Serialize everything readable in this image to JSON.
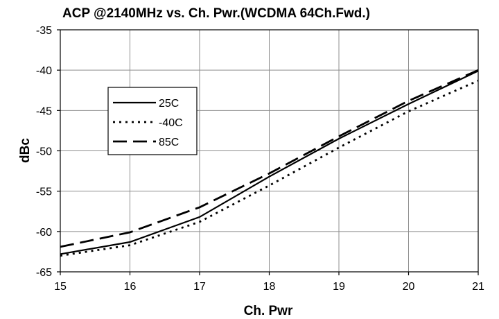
{
  "chart_data": {
    "type": "line",
    "title": "ACP @2140MHz vs. Ch. Pwr.(WCDMA 64Ch.Fwd.)",
    "xlabel": "Ch. Pwr",
    "ylabel": "dBc",
    "xlim": [
      15,
      21
    ],
    "ylim": [
      -65,
      -35
    ],
    "xticks": [
      "15",
      "16",
      "17",
      "18",
      "19",
      "20",
      "21"
    ],
    "yticks": [
      "-65",
      "-60",
      "-55",
      "-50",
      "-45",
      "-40",
      "-35"
    ],
    "grid": true,
    "legend_position": "upper-left inside plot",
    "x": [
      15,
      16,
      17,
      18,
      19,
      20,
      21
    ],
    "series": [
      {
        "name": "25C",
        "values": [
          -62.8,
          -61.3,
          -58.2,
          -53.2,
          -48.5,
          -44.2,
          -40.1
        ],
        "style": "solid",
        "color": "#000000"
      },
      {
        "name": "-40C",
        "values": [
          -63.0,
          -61.7,
          -58.8,
          -54.3,
          -49.6,
          -45.1,
          -41.3
        ],
        "style": "dotted",
        "color": "#000000"
      },
      {
        "name": "85C",
        "values": [
          -61.9,
          -60.1,
          -57.0,
          -52.8,
          -48.2,
          -43.8,
          -40.0
        ],
        "style": "dashed",
        "color": "#000000"
      }
    ]
  }
}
